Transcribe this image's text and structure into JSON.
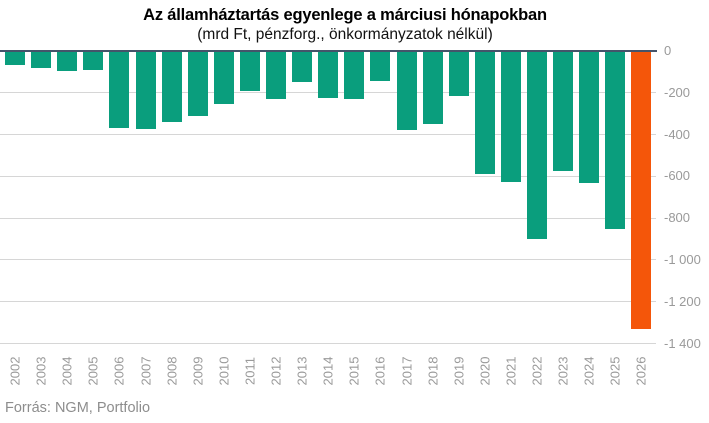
{
  "title": "Az államháztartás egyenlege a márciusi hónapokban",
  "subtitle": "(mrd Ft, pénzforg., önkormányzatok nélkül)",
  "source": "Forrás: NGM, Portfolio",
  "colors": {
    "bar": "#0a9e7d",
    "highlight_bar": "#f4560a",
    "zero_line": "#44546a",
    "gridline": "#d6d6d6",
    "axis_label": "#9a9a9a",
    "source_text": "#8d8d8d"
  },
  "chart_data": {
    "type": "bar",
    "title": "Az államháztartás egyenlege a márciusi hónapokban",
    "subtitle": "(mrd Ft, pénzforg., önkormányzatok nélkül)",
    "unit": "mrd Ft",
    "categories": [
      "2002",
      "2003",
      "2004",
      "2005",
      "2006",
      "2007",
      "2008",
      "2009",
      "2010",
      "2011",
      "2012",
      "2013",
      "2014",
      "2015",
      "2016",
      "2017",
      "2018",
      "2019",
      "2020",
      "2021",
      "2022",
      "2023",
      "2024",
      "2025",
      "2026"
    ],
    "values": [
      -65,
      -80,
      -95,
      -90,
      -370,
      -375,
      -340,
      -310,
      -255,
      -190,
      -230,
      -150,
      -225,
      -230,
      -145,
      -380,
      -350,
      -215,
      -590,
      -625,
      -900,
      -575,
      -630,
      -850,
      -1330
    ],
    "highlight_category": "2026",
    "highlight_index": 24,
    "ylim": [
      -1400,
      0
    ],
    "yticks": [
      0,
      -200,
      -400,
      -600,
      -800,
      -1000,
      -1200,
      -1400
    ],
    "ytick_labels": [
      "0",
      "-200",
      "-400",
      "-600",
      "-800",
      "-1 000",
      "-1 200",
      "-1 400"
    ],
    "grid": true,
    "legend": false,
    "ylabel_side": "right",
    "xlabel_rotation": 90
  }
}
